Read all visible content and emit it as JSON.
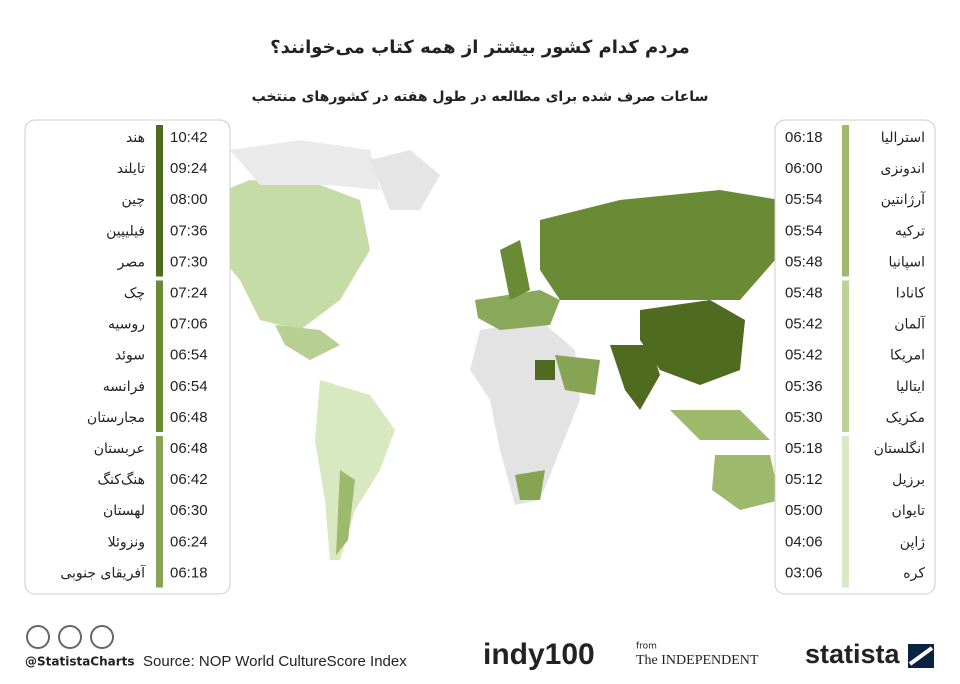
{
  "title": "مردم کدام کشور بیشتر از همه کتاب می‌خوانند؟",
  "subtitle": "ساعات صرف شده برای مطالعه در طول هفته در کشورهای منتخب",
  "left_groups": [
    {
      "color": "#4e6b20",
      "items": [
        {
          "country": "هند",
          "time": "10:42"
        },
        {
          "country": "تایلند",
          "time": "09:24"
        },
        {
          "country": "چین",
          "time": "08:00"
        },
        {
          "country": "فیلیپین",
          "time": "07:36"
        },
        {
          "country": "مصر",
          "time": "07:30"
        }
      ]
    },
    {
      "color": "#6a8b35",
      "items": [
        {
          "country": "چک",
          "time": "07:24"
        },
        {
          "country": "روسیه",
          "time": "07:06"
        },
        {
          "country": "سوئد",
          "time": "06:54"
        },
        {
          "country": "فرانسه",
          "time": "06:54"
        },
        {
          "country": "مجارستان",
          "time": "06:48"
        }
      ]
    },
    {
      "color": "#86a453",
      "items": [
        {
          "country": "عربستان",
          "time": "06:48"
        },
        {
          "country": "هنگ‌کنگ",
          "time": "06:42"
        },
        {
          "country": "لهستان",
          "time": "06:30"
        },
        {
          "country": "ونزوئلا",
          "time": "06:24"
        },
        {
          "country": "آفریقای جنوبی",
          "time": "06:18"
        }
      ]
    }
  ],
  "right_groups": [
    {
      "color": "#9cb96c",
      "items": [
        {
          "country": "استرالیا",
          "time": "06:18"
        },
        {
          "country": "اندونزی",
          "time": "06:00"
        },
        {
          "country": "آرژانتین",
          "time": "05:54"
        },
        {
          "country": "ترکیه",
          "time": "05:54"
        },
        {
          "country": "اسپانیا",
          "time": "05:48"
        }
      ]
    },
    {
      "color": "#bcd398",
      "items": [
        {
          "country": "کانادا",
          "time": "05:48"
        },
        {
          "country": "آلمان",
          "time": "05:42"
        },
        {
          "country": "امریکا",
          "time": "05:42"
        },
        {
          "country": "ایتالیا",
          "time": "05:36"
        },
        {
          "country": "مکزیک",
          "time": "05:30"
        }
      ]
    },
    {
      "color": "#d8e8c0",
      "items": [
        {
          "country": "انگلستان",
          "time": "05:18"
        },
        {
          "country": "برزیل",
          "time": "05:12"
        },
        {
          "country": "تایوان",
          "time": "05:00"
        },
        {
          "country": "ژاپن",
          "time": "04:06"
        },
        {
          "country": "کره",
          "time": "03:06"
        }
      ]
    }
  ],
  "footer": {
    "handle": "@StatistaCharts",
    "source": "Source: NOP World CultureScore Index",
    "indy": "indy100",
    "from": "from",
    "independent": "The INDEPENDENT",
    "statista": "statista"
  }
}
